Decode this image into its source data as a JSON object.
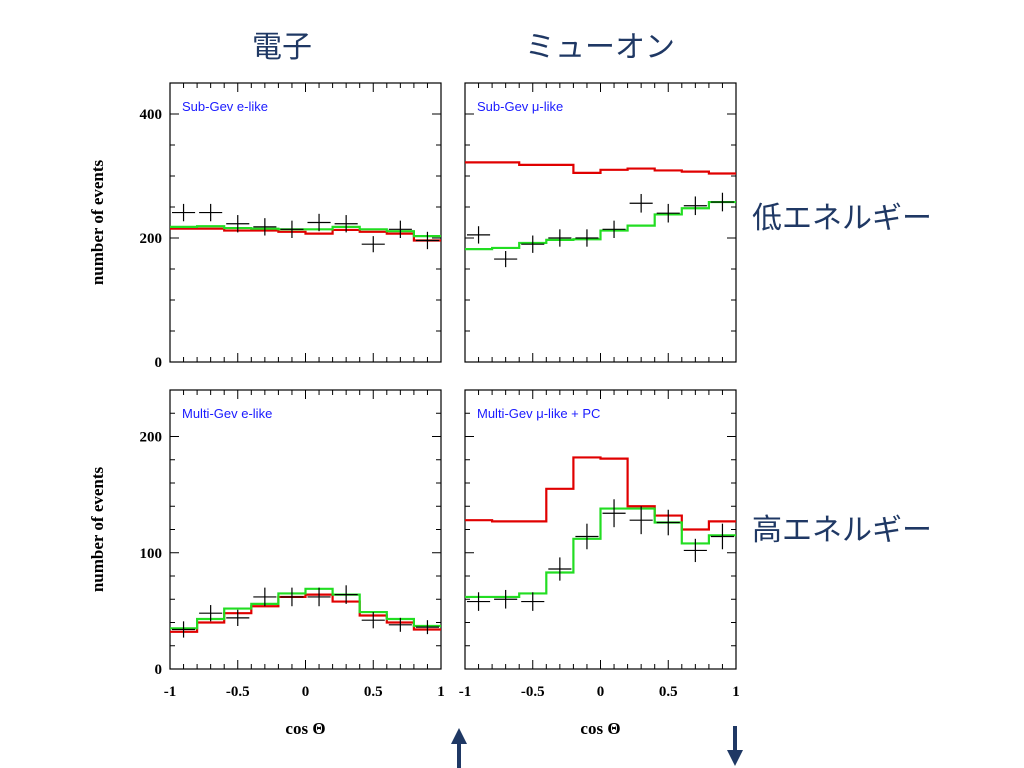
{
  "headers": {
    "left": "電子",
    "right": "ミューオン"
  },
  "side_labels": {
    "low": "低エネルギー",
    "high": "高エネルギー"
  },
  "colors": {
    "data": "#000000",
    "no_oscillation": "#e00000",
    "oscillation": "#22dd22",
    "header_text": "#1f3864",
    "panel_label": "#1a1aff"
  },
  "arrows": {
    "left": "up-arrow",
    "right": "down-arrow"
  },
  "chart_data": [
    {
      "type": "step",
      "title": "Sub-Gev e-like",
      "xlabel": "",
      "ylabel": "number of events",
      "xlim": [
        -1,
        1
      ],
      "ylim": [
        0,
        450
      ],
      "yticks": [
        "0",
        "200",
        "400"
      ],
      "xticks": [],
      "bin_edges": [
        -1,
        -0.8,
        -0.6,
        -0.4,
        -0.2,
        0,
        0.2,
        0.4,
        0.6,
        0.8,
        1
      ],
      "series": [
        {
          "values": [
            215,
            215,
            212,
            212,
            210,
            207,
            213,
            210,
            207,
            196
          ]
        },
        {
          "values": [
            218,
            219,
            216,
            215,
            214,
            214,
            218,
            214,
            211,
            203
          ]
        },
        {
          "values": [
            241,
            241,
            223,
            218,
            214,
            225,
            223,
            190,
            214,
            196
          ],
          "errors": [
            14,
            14,
            14,
            14,
            14,
            14,
            14,
            13,
            14,
            14
          ]
        }
      ]
    },
    {
      "type": "step",
      "title": "Sub-Gev μ-like",
      "xlabel": "",
      "ylabel": "",
      "xlim": [
        -1,
        1
      ],
      "ylim": [
        0,
        450
      ],
      "yticks": [],
      "xticks": [],
      "bin_edges": [
        -1,
        -0.8,
        -0.6,
        -0.4,
        -0.2,
        0,
        0.2,
        0.4,
        0.6,
        0.8,
        1
      ],
      "series": [
        {
          "values": [
            322,
            322,
            318,
            318,
            305,
            310,
            312,
            309,
            307,
            304
          ]
        },
        {
          "values": [
            182,
            184,
            192,
            197,
            198,
            212,
            220,
            238,
            248,
            258
          ]
        },
        {
          "values": [
            205,
            166,
            190,
            200,
            200,
            214,
            256,
            240,
            252,
            258
          ],
          "errors": [
            14,
            13,
            14,
            14,
            14,
            14,
            15,
            15,
            15,
            15
          ]
        }
      ]
    },
    {
      "type": "step",
      "title": "Multi-Gev e-like",
      "xlabel": "cos Θ",
      "ylabel": "number of events",
      "xlim": [
        -1,
        1
      ],
      "ylim": [
        0,
        240
      ],
      "yticks": [
        "0",
        "100",
        "200"
      ],
      "xticks": [
        "-1",
        "-0.5",
        "0",
        "0.5",
        "1"
      ],
      "bin_edges": [
        -1,
        -0.8,
        -0.6,
        -0.4,
        -0.2,
        0,
        0.2,
        0.4,
        0.6,
        0.8,
        1
      ],
      "series": [
        {
          "values": [
            32,
            40,
            48,
            54,
            62,
            64,
            58,
            46,
            40,
            34
          ]
        },
        {
          "values": [
            35,
            43,
            52,
            56,
            65,
            69,
            64,
            49,
            43,
            37
          ]
        },
        {
          "values": [
            34,
            48,
            44,
            62,
            62,
            62,
            64,
            42,
            38,
            36
          ],
          "errors": [
            7,
            7,
            7,
            8,
            8,
            8,
            8,
            7,
            6,
            6
          ]
        }
      ]
    },
    {
      "type": "step",
      "title": "Multi-Gev μ-like + PC",
      "xlabel": "cos Θ",
      "ylabel": "",
      "xlim": [
        -1,
        1
      ],
      "ylim": [
        0,
        240
      ],
      "yticks": [],
      "xticks": [
        "-1",
        "-0.5",
        "0",
        "0.5",
        "1"
      ],
      "bin_edges": [
        -1,
        -0.8,
        -0.6,
        -0.4,
        -0.2,
        0,
        0.2,
        0.4,
        0.6,
        0.8,
        1
      ],
      "series": [
        {
          "values": [
            128,
            127,
            127,
            155,
            182,
            181,
            140,
            132,
            120,
            127
          ]
        },
        {
          "values": [
            62,
            62,
            65,
            83,
            112,
            138,
            138,
            126,
            108,
            115
          ]
        },
        {
          "values": [
            58,
            60,
            58,
            86,
            114,
            134,
            128,
            126,
            102,
            114
          ],
          "errors": [
            8,
            8,
            8,
            10,
            11,
            12,
            12,
            11,
            10,
            11
          ]
        }
      ]
    }
  ]
}
